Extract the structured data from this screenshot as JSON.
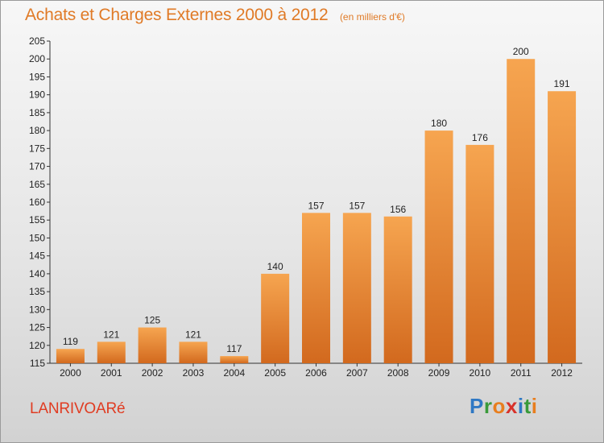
{
  "chart_data": {
    "type": "bar",
    "title": "Achats et Charges Externes 2000 à 2012",
    "unit": "(en milliers d'€)",
    "categories": [
      "2000",
      "2001",
      "2002",
      "2003",
      "2004",
      "2005",
      "2006",
      "2007",
      "2008",
      "2009",
      "2010",
      "2011",
      "2012"
    ],
    "values": [
      119,
      121,
      125,
      121,
      117,
      140,
      157,
      157,
      156,
      180,
      176,
      200,
      191
    ],
    "ylim": [
      115,
      205
    ],
    "yticks": [
      115,
      120,
      125,
      130,
      135,
      140,
      145,
      150,
      155,
      160,
      165,
      170,
      175,
      180,
      185,
      190,
      195,
      200,
      205
    ],
    "grid": false,
    "colors": {
      "bar_top": "#f6a550",
      "bar_bottom": "#d2691e",
      "title": "#e07a26"
    }
  },
  "footer": {
    "commune": "LANRIVOARé",
    "logo": {
      "letters": [
        "P",
        "r",
        "o",
        "x",
        "i",
        "t",
        "i"
      ],
      "colors": [
        "#2f78c4",
        "#3a9a3a",
        "#e87e1e",
        "#d8322a",
        "#2f78c4",
        "#3a9a3a",
        "#e87e1e"
      ]
    },
    "commune_color": "#e03c22"
  }
}
